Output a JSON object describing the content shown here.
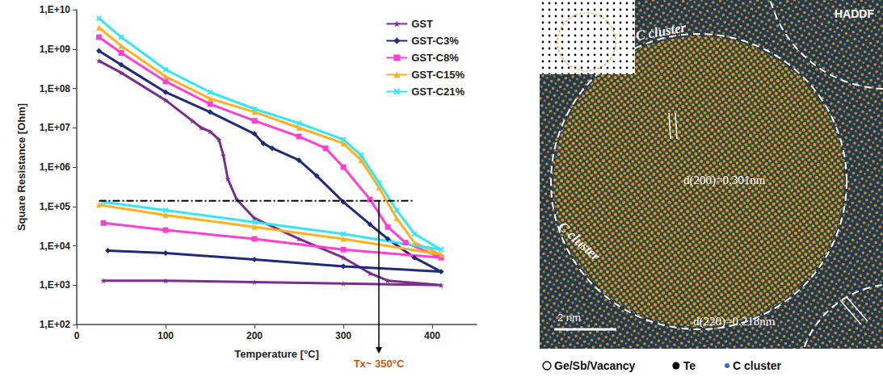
{
  "chart_data": {
    "type": "line",
    "xlabel": "Temperature [°C]",
    "ylabel": "Square Resistance [Ohm]",
    "xlim": [
      0,
      450
    ],
    "xticks": [
      0,
      100,
      200,
      300,
      400
    ],
    "ylim": [
      100,
      10000000000
    ],
    "yticks": [
      {
        "value": 100,
        "label": "1,E+02"
      },
      {
        "value": 1000,
        "label": "1,E+03"
      },
      {
        "value": 10000,
        "label": "1,E+04"
      },
      {
        "value": 100000,
        "label": "1,E+05"
      },
      {
        "value": 1000000,
        "label": "1,E+06"
      },
      {
        "value": 10000000,
        "label": "1,E+07"
      },
      {
        "value": 100000000,
        "label": "1,E+08"
      },
      {
        "value": 1000000000,
        "label": "1,E+09"
      },
      {
        "value": 10000000000,
        "label": "1,E+10"
      }
    ],
    "log": "y",
    "grid": false,
    "legend": "upper right",
    "series": [
      {
        "name": "GST",
        "color": "#7b2d8e",
        "marker": "star",
        "x": [
          25,
          50,
          100,
          130,
          140,
          150,
          160,
          165,
          170,
          180,
          200,
          250,
          300,
          330,
          350,
          410,
          300,
          200,
          100,
          30
        ],
        "values": [
          500000000.0,
          250000000.0,
          50000000.0,
          15000000.0,
          10000000.0,
          8000000.0,
          5000000.0,
          2000000.0,
          500000.0,
          150000.0,
          50000.0,
          15000.0,
          5000.0,
          2000.0,
          1300.0,
          1000.0,
          1100.0,
          1200.0,
          1300.0,
          1300.0
        ]
      },
      {
        "name": "GST-C3%",
        "color": "#1f2a7a",
        "marker": "diamond",
        "x": [
          25,
          50,
          100,
          150,
          200,
          210,
          220,
          250,
          270,
          300,
          330,
          350,
          380,
          410,
          300,
          200,
          100,
          35
        ],
        "values": [
          900000000.0,
          400000000.0,
          80000000.0,
          25000000.0,
          7000000.0,
          4000000.0,
          3000000.0,
          1500000.0,
          600000.0,
          130000.0,
          35000.0,
          15000.0,
          5000.0,
          2200.0,
          3000.0,
          4500.0,
          6500.0,
          7500.0
        ]
      },
      {
        "name": "GST-C8%",
        "color": "#ff3fd0",
        "marker": "square",
        "x": [
          25,
          50,
          100,
          150,
          200,
          250,
          280,
          300,
          330,
          350,
          370,
          410,
          300,
          200,
          100,
          30
        ],
        "values": [
          2000000000.0,
          800000000.0,
          150000000.0,
          40000000.0,
          15000000.0,
          6000000.0,
          3000000.0,
          1000000.0,
          150000.0,
          30000.0,
          12000.0,
          5000.0,
          8000.0,
          15000.0,
          25000.0,
          38000.0
        ]
      },
      {
        "name": "GST-C15%",
        "color": "#ffb020",
        "marker": "triangle",
        "x": [
          25,
          50,
          100,
          150,
          200,
          250,
          300,
          320,
          340,
          360,
          380,
          410,
          300,
          200,
          100,
          25
        ],
        "values": [
          3500000000.0,
          1200000000.0,
          200000000.0,
          55000000.0,
          25000000.0,
          10000000.0,
          4000000.0,
          1500000.0,
          300000.0,
          50000.0,
          12000.0,
          6000.0,
          15000.0,
          30000.0,
          60000.0,
          110000.0
        ]
      },
      {
        "name": "GST-C21%",
        "color": "#33e5f5",
        "marker": "cross",
        "x": [
          25,
          50,
          100,
          150,
          200,
          250,
          300,
          320,
          340,
          360,
          380,
          410,
          300,
          200,
          100,
          30
        ],
        "values": [
          6000000000.0,
          2000000000.0,
          300000000.0,
          80000000.0,
          30000000.0,
          13000000.0,
          5000000.0,
          2000000.0,
          400000.0,
          80000.0,
          20000.0,
          8000.0,
          20000.0,
          40000.0,
          80000.0,
          130000.0
        ]
      }
    ],
    "reference_line": {
      "x": [
        25,
        380
      ],
      "y": 140000,
      "line_style": "dashdot",
      "color": "#000000"
    },
    "annotation": {
      "text": "Tx~ 350°C",
      "x": 340,
      "y": 140000,
      "color": "#c55a11"
    }
  },
  "image_panel": {
    "label": "HADDF",
    "annotations": [
      "C cluster",
      "C cluster"
    ],
    "spacings": [
      "d(200)=0.301nm",
      "d(220)=0.218nm"
    ],
    "scale_bar": "2 nm",
    "legend": [
      {
        "marker": "open circle",
        "text": "Ge/Sb/Vacancy",
        "color": "#000000"
      },
      {
        "marker": "filled circle",
        "text": "Te",
        "color": "#000000"
      },
      {
        "marker": "dot",
        "text": "C cluster",
        "color": "#2e6fd1"
      }
    ]
  }
}
